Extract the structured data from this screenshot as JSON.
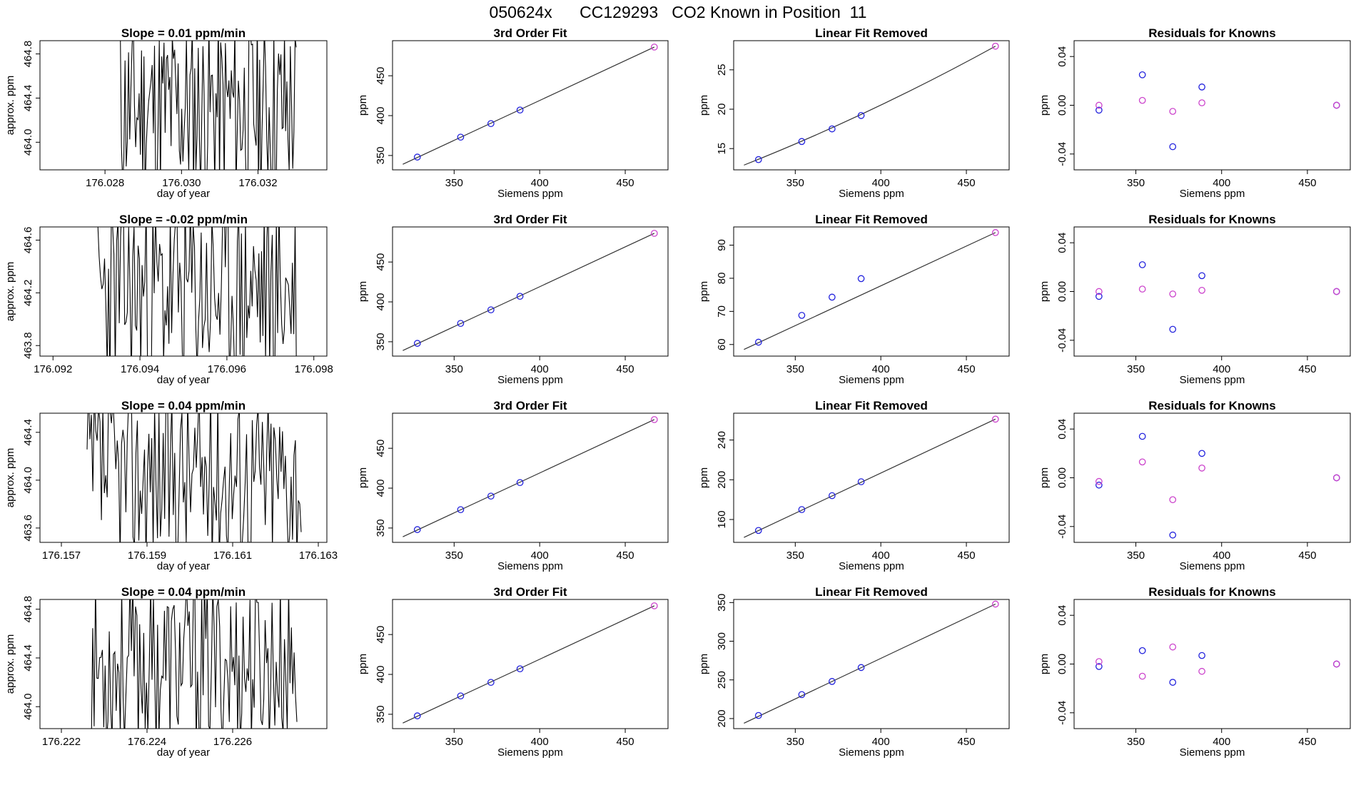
{
  "page_title": "050624x      CC129293   CO2 Known in Position  11",
  "colors": {
    "line": "#000000",
    "fit": "#333333",
    "blue": "#2222dd",
    "magenta": "#cc44cc"
  },
  "chart_data": [
    {
      "type": "line",
      "row": 0,
      "col": 0,
      "title": "Slope =  0.01  ppm/min",
      "xlabel": "day of year",
      "ylabel": "approx. ppm",
      "xlim": [
        176.0263,
        176.0338
      ],
      "ylim": [
        463.75,
        464.92
      ],
      "xticks": [
        176.028,
        176.03,
        176.032
      ],
      "xtick_labels": [
        "176.028",
        "176.030",
        "176.032"
      ],
      "yticks": [
        464.0,
        464.4,
        464.8
      ],
      "ytick_labels": [
        "464.0",
        "464.4",
        "464.8"
      ],
      "series_range": [
        176.0284,
        176.033
      ],
      "noise_seed": 11,
      "noise_range": [
        463.45,
        465.15
      ]
    },
    {
      "type": "line",
      "row": 0,
      "col": 1,
      "title": "3rd Order Fit",
      "xlabel": "Siemens ppm",
      "ylabel": "ppm",
      "xlim": [
        314,
        475
      ],
      "ylim": [
        332,
        494
      ],
      "xticks": [
        350,
        400,
        450
      ],
      "yticks": [
        350,
        400,
        450
      ],
      "fit": [
        [
          320,
          339
        ],
        [
          467,
          486
        ]
      ],
      "points": [
        {
          "x": 328.5,
          "y": 348,
          "color": "blue"
        },
        {
          "x": 353.8,
          "y": 373,
          "color": "blue"
        },
        {
          "x": 371.5,
          "y": 390,
          "color": "blue"
        },
        {
          "x": 388.5,
          "y": 407,
          "color": "blue"
        },
        {
          "x": 467,
          "y": 486,
          "color": "magenta"
        }
      ]
    },
    {
      "type": "line",
      "row": 0,
      "col": 2,
      "title": "Linear Fit Removed",
      "xlabel": "Siemens ppm",
      "ylabel": "ppm",
      "xlim": [
        314,
        475
      ],
      "ylim": [
        12.3,
        28.7
      ],
      "xticks": [
        350,
        400,
        450
      ],
      "yticks": [
        15,
        20,
        25
      ],
      "fit_curve": true,
      "fit": [
        [
          320,
          12.9
        ],
        [
          467,
          28.0
        ]
      ],
      "points": [
        {
          "x": 328.5,
          "y": 13.6,
          "color": "blue"
        },
        {
          "x": 353.8,
          "y": 15.9,
          "color": "blue"
        },
        {
          "x": 371.5,
          "y": 17.5,
          "color": "blue"
        },
        {
          "x": 388.5,
          "y": 19.2,
          "color": "blue"
        },
        {
          "x": 467,
          "y": 28.0,
          "color": "magenta"
        }
      ]
    },
    {
      "type": "scatter",
      "row": 0,
      "col": 3,
      "title": "Residuals for Knowns",
      "xlabel": "Siemens ppm",
      "ylabel": "ppm",
      "xlim": [
        314,
        475
      ],
      "ylim": [
        -0.053,
        0.053
      ],
      "xticks": [
        350,
        400,
        450
      ],
      "yticks": [
        -0.04,
        0.0,
        0.04
      ],
      "ytick_labels": [
        "-0.04",
        "0.00",
        "0.04"
      ],
      "points": [
        {
          "x": 328.5,
          "y": -0.004,
          "color": "blue"
        },
        {
          "x": 353.8,
          "y": 0.025,
          "color": "blue"
        },
        {
          "x": 371.5,
          "y": -0.034,
          "color": "blue"
        },
        {
          "x": 388.5,
          "y": 0.015,
          "color": "blue"
        },
        {
          "x": 467,
          "y": 0.0,
          "color": "blue"
        },
        {
          "x": 328.5,
          "y": 0.0,
          "color": "magenta"
        },
        {
          "x": 353.8,
          "y": 0.004,
          "color": "magenta"
        },
        {
          "x": 371.5,
          "y": -0.005,
          "color": "magenta"
        },
        {
          "x": 388.5,
          "y": 0.002,
          "color": "magenta"
        },
        {
          "x": 467,
          "y": 0.0,
          "color": "magenta"
        }
      ]
    },
    {
      "type": "line",
      "row": 1,
      "col": 0,
      "title": "Slope =  -0.02  ppm/min",
      "xlabel": "day of year",
      "ylabel": "approx. ppm",
      "xlim": [
        176.0917,
        176.0983
      ],
      "ylim": [
        463.72,
        464.7
      ],
      "xticks": [
        176.092,
        176.094,
        176.096,
        176.098
      ],
      "xtick_labels": [
        "176.092",
        "176.094",
        "176.096",
        "176.098"
      ],
      "yticks": [
        463.8,
        464.2,
        464.6
      ],
      "ytick_labels": [
        "463.8",
        "464.2",
        "464.6"
      ],
      "series_range": [
        176.093,
        176.0976
      ],
      "noise_seed": 23,
      "noise_range": [
        463.45,
        464.95
      ]
    },
    {
      "type": "line",
      "row": 1,
      "col": 1,
      "title": "3rd Order Fit",
      "xlabel": "Siemens ppm",
      "ylabel": "ppm",
      "xlim": [
        314,
        475
      ],
      "ylim": [
        332,
        494
      ],
      "xticks": [
        350,
        400,
        450
      ],
      "yticks": [
        350,
        400,
        450
      ],
      "fit": [
        [
          320,
          339
        ],
        [
          467,
          486
        ]
      ],
      "points": [
        {
          "x": 328.5,
          "y": 348,
          "color": "blue"
        },
        {
          "x": 353.8,
          "y": 373,
          "color": "blue"
        },
        {
          "x": 371.5,
          "y": 390,
          "color": "blue"
        },
        {
          "x": 388.5,
          "y": 407,
          "color": "blue"
        },
        {
          "x": 467,
          "y": 486,
          "color": "magenta"
        }
      ]
    },
    {
      "type": "line",
      "row": 1,
      "col": 2,
      "title": "Linear Fit Removed",
      "xlabel": "Siemens ppm",
      "ylabel": "ppm",
      "xlim": [
        314,
        475
      ],
      "ylim": [
        56.5,
        95.5
      ],
      "xticks": [
        350,
        400,
        450
      ],
      "yticks": [
        60,
        70,
        80,
        90
      ],
      "fit": [
        [
          320,
          58.5
        ],
        [
          467,
          93.8
        ]
      ],
      "points": [
        {
          "x": 328.5,
          "y": 60.7,
          "color": "blue"
        },
        {
          "x": 353.8,
          "y": 68.8,
          "color": "blue"
        },
        {
          "x": 371.5,
          "y": 74.3,
          "color": "blue"
        },
        {
          "x": 388.5,
          "y": 79.9,
          "color": "blue"
        },
        {
          "x": 467,
          "y": 93.8,
          "color": "magenta"
        }
      ]
    },
    {
      "type": "scatter",
      "row": 1,
      "col": 3,
      "title": "Residuals for Knowns",
      "xlabel": "Siemens ppm",
      "ylabel": "ppm",
      "xlim": [
        314,
        475
      ],
      "ylim": [
        -0.053,
        0.053
      ],
      "xticks": [
        350,
        400,
        450
      ],
      "yticks": [
        -0.04,
        0.0,
        0.04
      ],
      "ytick_labels": [
        "-0.04",
        "0.00",
        "0.04"
      ],
      "points": [
        {
          "x": 328.5,
          "y": -0.004,
          "color": "blue"
        },
        {
          "x": 353.8,
          "y": 0.022,
          "color": "blue"
        },
        {
          "x": 371.5,
          "y": -0.031,
          "color": "blue"
        },
        {
          "x": 388.5,
          "y": 0.013,
          "color": "blue"
        },
        {
          "x": 467,
          "y": 0.0,
          "color": "blue"
        },
        {
          "x": 328.5,
          "y": 0.0,
          "color": "magenta"
        },
        {
          "x": 353.8,
          "y": 0.002,
          "color": "magenta"
        },
        {
          "x": 371.5,
          "y": -0.002,
          "color": "magenta"
        },
        {
          "x": 388.5,
          "y": 0.001,
          "color": "magenta"
        },
        {
          "x": 467,
          "y": 0.0,
          "color": "magenta"
        }
      ]
    },
    {
      "type": "line",
      "row": 2,
      "col": 0,
      "title": "Slope =  0.04  ppm/min",
      "xlabel": "day of year",
      "ylabel": "approx. ppm",
      "xlim": [
        176.1565,
        176.1632
      ],
      "ylim": [
        463.48,
        464.56
      ],
      "xticks": [
        176.157,
        176.159,
        176.161,
        176.163
      ],
      "xtick_labels": [
        "176.157",
        "176.159",
        "176.161",
        "176.163"
      ],
      "yticks": [
        463.6,
        464.0,
        464.4
      ],
      "ytick_labels": [
        "463.6",
        "464.0",
        "464.4"
      ],
      "series_range": [
        176.1576,
        176.1626
      ],
      "noise_seed": 37,
      "noise_range": [
        463.3,
        464.8
      ]
    },
    {
      "type": "line",
      "row": 2,
      "col": 1,
      "title": "3rd Order Fit",
      "xlabel": "Siemens ppm",
      "ylabel": "ppm",
      "xlim": [
        314,
        475
      ],
      "ylim": [
        332,
        494
      ],
      "xticks": [
        350,
        400,
        450
      ],
      "yticks": [
        350,
        400,
        450
      ],
      "fit": [
        [
          320,
          339
        ],
        [
          467,
          486
        ]
      ],
      "points": [
        {
          "x": 328.5,
          "y": 348,
          "color": "blue"
        },
        {
          "x": 353.8,
          "y": 373,
          "color": "blue"
        },
        {
          "x": 371.5,
          "y": 390,
          "color": "blue"
        },
        {
          "x": 388.5,
          "y": 407,
          "color": "blue"
        },
        {
          "x": 467,
          "y": 486,
          "color": "magenta"
        }
      ]
    },
    {
      "type": "line",
      "row": 2,
      "col": 2,
      "title": "Linear Fit Removed",
      "xlabel": "Siemens ppm",
      "ylabel": "ppm",
      "xlim": [
        314,
        475
      ],
      "ylim": [
        137,
        267
      ],
      "xticks": [
        350,
        400,
        450
      ],
      "yticks": [
        160,
        200,
        240
      ],
      "fit": [
        [
          320,
          142
        ],
        [
          467,
          261
        ]
      ],
      "points": [
        {
          "x": 328.5,
          "y": 149,
          "color": "blue"
        },
        {
          "x": 353.8,
          "y": 170,
          "color": "blue"
        },
        {
          "x": 371.5,
          "y": 184,
          "color": "blue"
        },
        {
          "x": 388.5,
          "y": 198,
          "color": "blue"
        },
        {
          "x": 467,
          "y": 261,
          "color": "magenta"
        }
      ]
    },
    {
      "type": "scatter",
      "row": 2,
      "col": 3,
      "title": "Residuals for Knowns",
      "xlabel": "Siemens ppm",
      "ylabel": "ppm",
      "xlim": [
        314,
        475
      ],
      "ylim": [
        -0.053,
        0.053
      ],
      "xticks": [
        350,
        400,
        450
      ],
      "yticks": [
        -0.04,
        0.0,
        0.04
      ],
      "ytick_labels": [
        "-0.04",
        "0.00",
        "0.04"
      ],
      "points": [
        {
          "x": 328.5,
          "y": -0.006,
          "color": "blue"
        },
        {
          "x": 353.8,
          "y": 0.034,
          "color": "blue"
        },
        {
          "x": 371.5,
          "y": -0.047,
          "color": "blue"
        },
        {
          "x": 388.5,
          "y": 0.02,
          "color": "blue"
        },
        {
          "x": 467,
          "y": 0.0,
          "color": "blue"
        },
        {
          "x": 328.5,
          "y": -0.003,
          "color": "magenta"
        },
        {
          "x": 353.8,
          "y": 0.013,
          "color": "magenta"
        },
        {
          "x": 371.5,
          "y": -0.018,
          "color": "magenta"
        },
        {
          "x": 388.5,
          "y": 0.008,
          "color": "magenta"
        },
        {
          "x": 467,
          "y": 0.0,
          "color": "magenta"
        }
      ]
    },
    {
      "type": "line",
      "row": 3,
      "col": 0,
      "title": "Slope =  0.04  ppm/min",
      "xlabel": "day of year",
      "ylabel": "approx. ppm",
      "xlim": [
        176.2215,
        176.2282
      ],
      "ylim": [
        463.82,
        464.88
      ],
      "xticks": [
        176.222,
        176.224,
        176.226
      ],
      "xtick_labels": [
        "176.222",
        "176.224",
        "176.226"
      ],
      "yticks": [
        464.0,
        464.4,
        464.8
      ],
      "ytick_labels": [
        "464.0",
        "464.4",
        "464.8"
      ],
      "series_range": [
        176.2227,
        176.2275
      ],
      "noise_seed": 53,
      "noise_range": [
        463.65,
        465.05
      ]
    },
    {
      "type": "line",
      "row": 3,
      "col": 1,
      "title": "3rd Order Fit",
      "xlabel": "Siemens ppm",
      "ylabel": "ppm",
      "xlim": [
        314,
        475
      ],
      "ylim": [
        332,
        494
      ],
      "xticks": [
        350,
        400,
        450
      ],
      "yticks": [
        350,
        400,
        450
      ],
      "fit": [
        [
          320,
          339
        ],
        [
          467,
          486
        ]
      ],
      "points": [
        {
          "x": 328.5,
          "y": 348,
          "color": "blue"
        },
        {
          "x": 353.8,
          "y": 373,
          "color": "blue"
        },
        {
          "x": 371.5,
          "y": 390,
          "color": "blue"
        },
        {
          "x": 388.5,
          "y": 407,
          "color": "blue"
        },
        {
          "x": 467,
          "y": 486,
          "color": "magenta"
        }
      ]
    },
    {
      "type": "line",
      "row": 3,
      "col": 2,
      "title": "Linear Fit Removed",
      "xlabel": "Siemens ppm",
      "ylabel": "ppm",
      "xlim": [
        314,
        475
      ],
      "ylim": [
        187,
        354
      ],
      "xticks": [
        350,
        400,
        450
      ],
      "yticks": [
        200,
        250,
        300,
        350
      ],
      "fit": [
        [
          320,
          194
        ],
        [
          467,
          348
        ]
      ],
      "points": [
        {
          "x": 328.5,
          "y": 204,
          "color": "blue"
        },
        {
          "x": 353.8,
          "y": 231,
          "color": "blue"
        },
        {
          "x": 371.5,
          "y": 248,
          "color": "blue"
        },
        {
          "x": 388.5,
          "y": 266,
          "color": "blue"
        },
        {
          "x": 467,
          "y": 348,
          "color": "magenta"
        }
      ]
    },
    {
      "type": "scatter",
      "row": 3,
      "col": 3,
      "title": "Residuals for Knowns",
      "xlabel": "Siemens ppm",
      "ylabel": "ppm",
      "xlim": [
        314,
        475
      ],
      "ylim": [
        -0.053,
        0.053
      ],
      "xticks": [
        350,
        400,
        450
      ],
      "yticks": [
        -0.04,
        0.0,
        0.04
      ],
      "ytick_labels": [
        "-0.04",
        "0.00",
        "0.04"
      ],
      "points": [
        {
          "x": 328.5,
          "y": -0.002,
          "color": "blue"
        },
        {
          "x": 353.8,
          "y": 0.011,
          "color": "blue"
        },
        {
          "x": 371.5,
          "y": -0.015,
          "color": "blue"
        },
        {
          "x": 388.5,
          "y": 0.007,
          "color": "blue"
        },
        {
          "x": 467,
          "y": 0.0,
          "color": "blue"
        },
        {
          "x": 328.5,
          "y": 0.002,
          "color": "magenta"
        },
        {
          "x": 353.8,
          "y": -0.01,
          "color": "magenta"
        },
        {
          "x": 371.5,
          "y": 0.014,
          "color": "magenta"
        },
        {
          "x": 388.5,
          "y": -0.006,
          "color": "magenta"
        },
        {
          "x": 467,
          "y": 0.0,
          "color": "magenta"
        }
      ]
    }
  ]
}
